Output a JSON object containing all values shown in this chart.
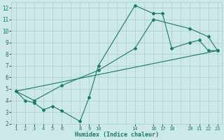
{
  "xlabel": "Humidex (Indice chaleur)",
  "bg_color": "#cce8e8",
  "grid_color": "#aacece",
  "line_color": "#1a7a6a",
  "xlim": [
    0.5,
    23.5
  ],
  "ylim": [
    2,
    12.5
  ],
  "xtick_labels": [
    1,
    2,
    3,
    4,
    5,
    6,
    8,
    9,
    10,
    14,
    16,
    17,
    18,
    20,
    21,
    22,
    23
  ],
  "ytick_labels": [
    2,
    3,
    4,
    5,
    6,
    7,
    8,
    9,
    10,
    11,
    12
  ],
  "xgrid_ticks": [
    1,
    2,
    3,
    4,
    5,
    6,
    7,
    8,
    9,
    10,
    11,
    12,
    13,
    14,
    15,
    16,
    17,
    18,
    19,
    20,
    21,
    22,
    23
  ],
  "ygrid_ticks": [
    2,
    3,
    4,
    5,
    6,
    7,
    8,
    9,
    10,
    11,
    12
  ],
  "line1_x": [
    1,
    2,
    3,
    4,
    5,
    6,
    8,
    9,
    10,
    14,
    16,
    17,
    18,
    20,
    21,
    22,
    23
  ],
  "line1_y": [
    4.8,
    4.0,
    3.8,
    3.2,
    3.5,
    3.1,
    2.2,
    4.3,
    7.0,
    12.2,
    11.5,
    11.5,
    8.5,
    9.0,
    9.2,
    8.3,
    8.3
  ],
  "line2_x": [
    1,
    3,
    6,
    10,
    14,
    16,
    20,
    22,
    23
  ],
  "line2_y": [
    4.8,
    4.0,
    5.3,
    6.6,
    8.5,
    11.0,
    10.2,
    9.5,
    8.3
  ],
  "line3_x": [
    1,
    23
  ],
  "line3_y": [
    4.8,
    8.3
  ]
}
